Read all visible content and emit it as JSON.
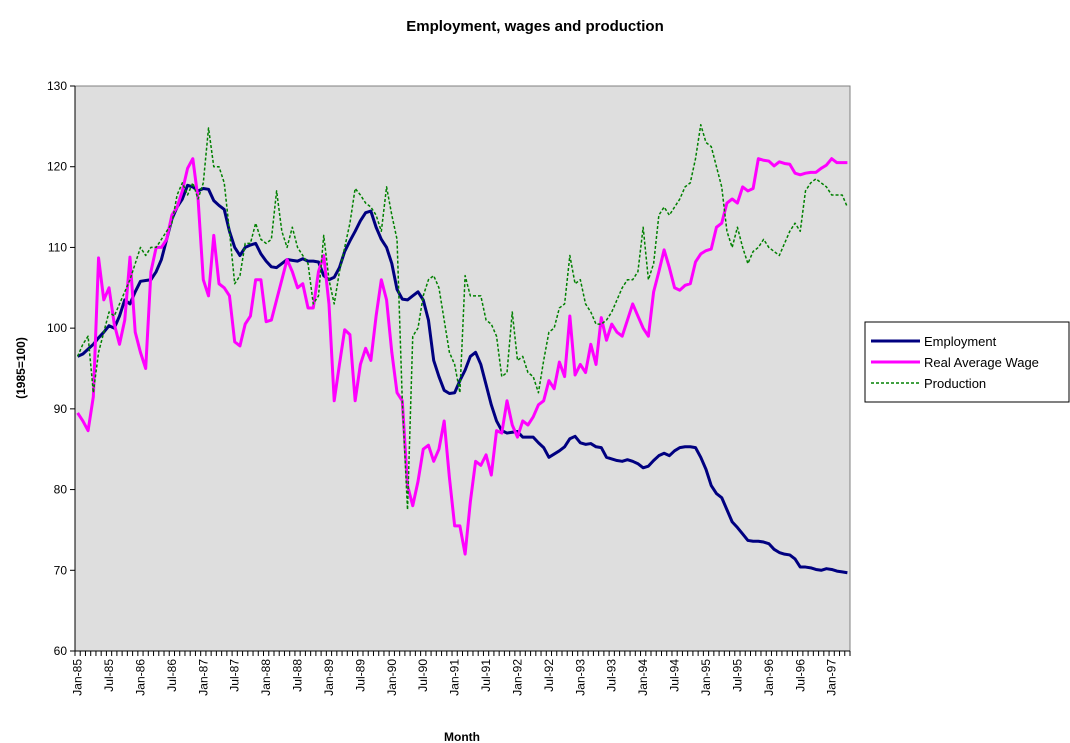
{
  "chart_data": {
    "type": "line",
    "title": "Employment, wages and production",
    "x_label": "Month",
    "y_label": "(1985=100)",
    "categories": [
      "Jan-85",
      null,
      null,
      null,
      null,
      null,
      "Jul-85",
      null,
      null,
      null,
      null,
      null,
      "Jan-86",
      null,
      null,
      null,
      null,
      null,
      "Jul-86",
      null,
      null,
      null,
      null,
      null,
      "Jan-87",
      null,
      null,
      null,
      null,
      null,
      "Jul-87",
      null,
      null,
      null,
      null,
      null,
      "Jan-88",
      null,
      null,
      null,
      null,
      null,
      "Jul-88",
      null,
      null,
      null,
      null,
      null,
      "Jan-89",
      null,
      null,
      null,
      null,
      null,
      "Jul-89",
      null,
      null,
      null,
      null,
      null,
      "Jan-90",
      null,
      null,
      null,
      null,
      null,
      "Jul-90",
      null,
      null,
      null,
      null,
      null,
      "Jan-91",
      null,
      null,
      null,
      null,
      null,
      "Jul-91",
      null,
      null,
      null,
      null,
      null,
      "Jan-92",
      null,
      null,
      null,
      null,
      null,
      "Jul-92",
      null,
      null,
      null,
      null,
      null,
      "Jan-93",
      null,
      null,
      null,
      null,
      null,
      "Jul-93",
      null,
      null,
      null,
      null,
      null,
      "Jan-94",
      null,
      null,
      null,
      null,
      null,
      "Jul-94",
      null,
      null,
      null,
      null,
      null,
      "Jan-95",
      null,
      null,
      null,
      null,
      null,
      "Jul-95",
      null,
      null,
      null,
      null,
      null,
      "Jan-96",
      null,
      null,
      null,
      null,
      null,
      "Jul-96",
      null,
      null,
      null,
      null,
      null,
      "Jan-97",
      null,
      null,
      null
    ],
    "series": [
      {
        "name": "Employment",
        "color": "#000080",
        "values": [
          96.5,
          96.8,
          97.4,
          98,
          98.8,
          99.5,
          100.3,
          100,
          101.5,
          103.5,
          103,
          104.5,
          105.8,
          105.9,
          106,
          107,
          108.5,
          111,
          113.5,
          115,
          116,
          117.7,
          117.5,
          117,
          117.3,
          117.2,
          115.8,
          115.2,
          114.7,
          112,
          110,
          109,
          110,
          110.3,
          110.5,
          109.2,
          108.3,
          107.6,
          107.5,
          108,
          108.5,
          108.4,
          108.3,
          108.6,
          108.3,
          108.3,
          108.2,
          106.5,
          106,
          106.3,
          107.5,
          109.5,
          110.8,
          112,
          113.3,
          114.3,
          114.5,
          112.5,
          111,
          110,
          108,
          104.8,
          103.6,
          103.5,
          104,
          104.5,
          103.5,
          101,
          96,
          94,
          92.3,
          91.9,
          92,
          93.5,
          94.8,
          96.5,
          97,
          95.5,
          93,
          90.5,
          88.5,
          87.3,
          87,
          87.1,
          87.2,
          86.5,
          86.5,
          86.5,
          85.8,
          85.2,
          84,
          84.4,
          84.8,
          85.3,
          86.3,
          86.6,
          85.8,
          85.6,
          85.7,
          85.3,
          85.2,
          84,
          83.8,
          83.6,
          83.5,
          83.7,
          83.5,
          83.2,
          82.7,
          82.9,
          83.6,
          84.2,
          84.5,
          84.2,
          84.8,
          85.2,
          85.3,
          85.3,
          85.2,
          84,
          82.5,
          80.5,
          79.5,
          79,
          77.5,
          76,
          75.3,
          74.5,
          73.7,
          73.6,
          73.6,
          73.5,
          73.3,
          72.6,
          72.2,
          72,
          71.9,
          71.4,
          70.4,
          70.4,
          70.3,
          70.1,
          70,
          70.2,
          70.1,
          69.9,
          69.8,
          69.7
        ]
      },
      {
        "name": "Real Average Wage",
        "color": "#ff00ff",
        "values": [
          89.5,
          88.5,
          87.3,
          91.5,
          108.7,
          103.5,
          105,
          100.5,
          98,
          101,
          108.8,
          99.5,
          97,
          95,
          107,
          110,
          110,
          111,
          114,
          115,
          117,
          119.8,
          121,
          116,
          106,
          104,
          111.5,
          105.5,
          105,
          104,
          98.3,
          97.8,
          100.5,
          101.5,
          106,
          106,
          100.8,
          101,
          103.5,
          106,
          108.5,
          107,
          105,
          105.5,
          102.5,
          102.5,
          107,
          109,
          103,
          91,
          95.5,
          99.8,
          99.2,
          91,
          95.5,
          97.5,
          96,
          101.5,
          106,
          103.5,
          97,
          92,
          91,
          80.5,
          78,
          81,
          85,
          85.5,
          83.5,
          85,
          88.5,
          81.5,
          75.5,
          75.5,
          72,
          78.5,
          83.5,
          83,
          84.3,
          81.8,
          87.3,
          87,
          91,
          88,
          86.5,
          88.5,
          88,
          89,
          90.5,
          91,
          93.5,
          92.5,
          95.8,
          94,
          101.5,
          94.2,
          95.5,
          94.5,
          98,
          95.5,
          101.3,
          98.5,
          100.5,
          99.5,
          99,
          101,
          103,
          101.5,
          100,
          99,
          104.5,
          107,
          109.7,
          107.5,
          105,
          104.7,
          105.3,
          105.5,
          108.2,
          109.2,
          109.6,
          109.8,
          112.5,
          113,
          115.5,
          116,
          115.5,
          117.5,
          117,
          117.3,
          121,
          120.8,
          120.7,
          120.1,
          120.6,
          120.4,
          120.3,
          119.2,
          119,
          119.2,
          119.3,
          119.3,
          119.8,
          120.2,
          121,
          120.5,
          120.5,
          120.5
        ]
      },
      {
        "name": "Production",
        "color": "#008000",
        "values": [
          96.5,
          98,
          99,
          92,
          97,
          99.5,
          102,
          101.5,
          103,
          104.5,
          106,
          108,
          110,
          109,
          110,
          110,
          111,
          112,
          113,
          116.5,
          118,
          116.5,
          118,
          116,
          118,
          124.8,
          120,
          120,
          118,
          112,
          105.5,
          106.5,
          110.5,
          110.5,
          113,
          111,
          110.5,
          111,
          117,
          112,
          110,
          112.5,
          110,
          109,
          108,
          103,
          104,
          111.5,
          106,
          103,
          107,
          110,
          113,
          117.3,
          116.5,
          115.5,
          115,
          114,
          112,
          117.5,
          114,
          111,
          91,
          77.5,
          99,
          100,
          104,
          106,
          106.5,
          105,
          101,
          97,
          95.5,
          92,
          106.5,
          104,
          104,
          104,
          101,
          100.5,
          99,
          94,
          94.5,
          102,
          96,
          96.5,
          94.5,
          94,
          92,
          96,
          99.5,
          100,
          102.5,
          103,
          109,
          105.5,
          106,
          103,
          102,
          100.5,
          100.5,
          101,
          102,
          103.5,
          105,
          106,
          106,
          107,
          112.5,
          106,
          108,
          114,
          115,
          114,
          115,
          116,
          117.5,
          118,
          121,
          125.2,
          123,
          122.5,
          120,
          117.5,
          112,
          110,
          112.5,
          110,
          108,
          109.5,
          110,
          111,
          110,
          109.5,
          109,
          110.5,
          112,
          113,
          112,
          117,
          118,
          118.5,
          118,
          117.5,
          116.5,
          116.5,
          116.5,
          115
        ]
      }
    ],
    "ylim": [
      60,
      130
    ],
    "yticks": [
      60,
      70,
      80,
      90,
      100,
      110,
      120,
      130
    ],
    "grid": false,
    "legend": "right"
  }
}
